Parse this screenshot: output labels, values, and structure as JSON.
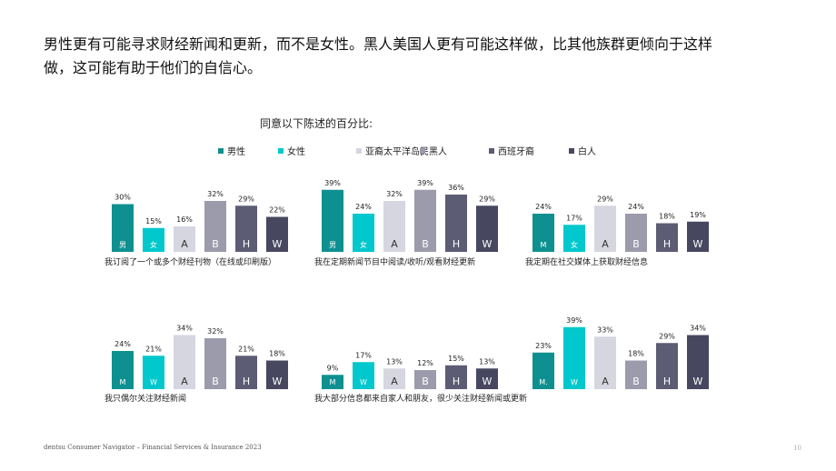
{
  "headline": {
    "line1": "男性更有可能寻求财经新闻和更新，而不是女性。黑人美国人更有可能这样做，比其他族群更倾向于这样",
    "line2": "做，这可能有助于他们的自信心。"
  },
  "subtitle": "同意以下陈述的百分比:",
  "legend": [
    {
      "label": "男性",
      "color": "#0f9090"
    },
    {
      "label": "女性",
      "color": "#00c8cc"
    },
    {
      "label": "亚裔太平洋岛民",
      "color": "#d6d6e0"
    },
    {
      "label": "黑人",
      "color": "#9b9bac"
    },
    {
      "label": "西班牙裔",
      "color": "#5c5c74"
    },
    {
      "label": "白人",
      "color": "#474760"
    }
  ],
  "colors": [
    "#0f9090",
    "#00c8cc",
    "#d6d6e0",
    "#9b9bac",
    "#5c5c74",
    "#474760"
  ],
  "chart_data": [
    {
      "type": "bar",
      "title": "我订阅了一个或多个财经刊物（在线或印刷版）",
      "categories": [
        "男",
        "女",
        "A",
        "B",
        "H",
        "W"
      ],
      "values": [
        30,
        15,
        16,
        32,
        29,
        22
      ],
      "value_labels": [
        "30%",
        "15%",
        "16%",
        "32%",
        "29%",
        "22%"
      ]
    },
    {
      "type": "bar",
      "title": "我在定期新闻节目中阅读/收听/观看财经更新",
      "categories": [
        "男",
        "女",
        "A",
        "B",
        "H",
        "W"
      ],
      "values": [
        39,
        24,
        32,
        39,
        36,
        29
      ],
      "value_labels": [
        "39%",
        "24%",
        "32%",
        "39%",
        "36%",
        "29%"
      ]
    },
    {
      "type": "bar",
      "title": "我定期在社交媒体上获取财经信息",
      "categories": [
        "M",
        "女",
        "A",
        "B",
        "H",
        "W"
      ],
      "values": [
        24,
        17,
        29,
        24,
        18,
        19
      ],
      "value_labels": [
        "24%",
        "17%",
        "29%",
        "24%",
        "18%",
        "19%"
      ]
    },
    {
      "type": "bar",
      "title": "我只偶尔关注财经新闻",
      "categories": [
        "M",
        "W",
        "A",
        "B",
        "H",
        "W"
      ],
      "values": [
        24,
        21,
        34,
        32,
        21,
        18
      ],
      "value_labels": [
        "24%",
        "21%",
        "34%",
        "32%",
        "21%",
        "18%"
      ]
    },
    {
      "type": "bar",
      "title": "我大部分信息都来自家人和朋友，很少关注财经新闻或更新",
      "categories": [
        "M",
        "W",
        "A",
        "B",
        "H",
        "W"
      ],
      "values": [
        9,
        17,
        13,
        12,
        15,
        13
      ],
      "value_labels": [
        "9%",
        "17%",
        "13%",
        "12%",
        "15%",
        "13%"
      ]
    },
    {
      "type": "bar",
      "title": "",
      "categories": [
        "M.",
        "W",
        "A",
        "B",
        "H",
        "W"
      ],
      "values": [
        23,
        39,
        33,
        18,
        29,
        34
      ],
      "value_labels": [
        "23%",
        "39%",
        "33%",
        "18%",
        "29%",
        "34%"
      ]
    }
  ],
  "footer": "dentsu Consumer Navigator – Financial Services & Insurance 2023",
  "page_number": "10"
}
